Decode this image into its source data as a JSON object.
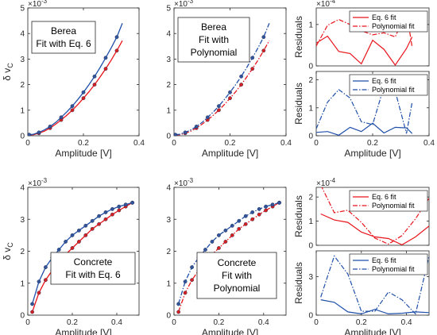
{
  "colors": {
    "red": "#e8141b",
    "blue": "#1f4fa8",
    "marker_red": "#d42020",
    "marker_blue": "#32559a"
  },
  "chart_data": [
    {
      "id": "berea-eq6",
      "type": "scatter",
      "xlabel": "Amplitude [V]",
      "ylabel": "δ v",
      "ylabel_sub": "C",
      "exponent": "×10",
      "exponent_power": "-3",
      "xlim": [
        0,
        0.4
      ],
      "ylim": [
        0,
        5
      ],
      "xticks": [
        "0",
        "0.2",
        "0.4"
      ],
      "yticks": [
        "0",
        "1",
        "2",
        "3",
        "4",
        "5"
      ],
      "xtick_values": [
        0,
        0.2,
        0.4
      ],
      "ytick_values": [
        0,
        1,
        2,
        3,
        4,
        5
      ],
      "annotation": [
        "Berea",
        "Fit with Eq. 6"
      ],
      "series": [
        {
          "color": "red",
          "fit": "solid",
          "x": [
            0.005,
            0.02,
            0.04,
            0.06,
            0.08,
            0.1,
            0.12,
            0.14,
            0.16,
            0.18,
            0.2,
            0.22,
            0.24,
            0.26,
            0.28,
            0.3,
            0.32,
            0.34
          ],
          "y": [
            0.03,
            0.04,
            0.1,
            0.18,
            0.3,
            0.45,
            0.62,
            0.8,
            1.0,
            1.22,
            1.47,
            1.72,
            2.0,
            2.3,
            2.62,
            2.96,
            3.33,
            3.72
          ]
        },
        {
          "color": "blue",
          "fit": "solid",
          "x": [
            0.005,
            0.02,
            0.04,
            0.06,
            0.08,
            0.1,
            0.12,
            0.14,
            0.16,
            0.18,
            0.2,
            0.22,
            0.24,
            0.26,
            0.28,
            0.3,
            0.32,
            0.34
          ],
          "y": [
            0.04,
            0.06,
            0.13,
            0.23,
            0.36,
            0.52,
            0.72,
            0.93,
            1.16,
            1.42,
            1.7,
            2.0,
            2.32,
            2.67,
            3.05,
            3.44,
            3.86,
            4.4
          ]
        }
      ]
    },
    {
      "id": "berea-poly",
      "type": "scatter",
      "xlabel": "Amplitude [V]",
      "ylabel": "",
      "exponent": "×10",
      "exponent_power": "-3",
      "xlim": [
        0,
        0.4
      ],
      "ylim": [
        0,
        5
      ],
      "xticks": [
        "0",
        "0.2",
        "0.4"
      ],
      "yticks": [
        "0",
        "1",
        "2",
        "3",
        "4",
        "5"
      ],
      "xtick_values": [
        0,
        0.2,
        0.4
      ],
      "ytick_values": [
        0,
        1,
        2,
        3,
        4,
        5
      ],
      "annotation": [
        "Berea",
        "Fit with",
        "Polynomial"
      ],
      "series": [
        {
          "color": "red",
          "fit": "dashdot",
          "x": [
            0.005,
            0.02,
            0.04,
            0.06,
            0.08,
            0.1,
            0.12,
            0.14,
            0.16,
            0.18,
            0.2,
            0.22,
            0.24,
            0.26,
            0.28,
            0.3,
            0.32,
            0.34
          ],
          "y": [
            0.03,
            0.04,
            0.1,
            0.18,
            0.3,
            0.45,
            0.62,
            0.8,
            1.0,
            1.22,
            1.47,
            1.72,
            2.0,
            2.3,
            2.62,
            2.96,
            3.33,
            3.72
          ]
        },
        {
          "color": "blue",
          "fit": "dashdot",
          "x": [
            0.005,
            0.02,
            0.04,
            0.06,
            0.08,
            0.1,
            0.12,
            0.14,
            0.16,
            0.18,
            0.2,
            0.22,
            0.24,
            0.26,
            0.28,
            0.3,
            0.32,
            0.34
          ],
          "y": [
            0.04,
            0.06,
            0.13,
            0.23,
            0.36,
            0.52,
            0.72,
            0.93,
            1.16,
            1.42,
            1.7,
            2.0,
            2.32,
            2.67,
            3.05,
            3.44,
            3.86,
            4.4
          ]
        }
      ]
    },
    {
      "id": "berea-res-red",
      "type": "line",
      "xlabel": "",
      "ylabel": "Residuals",
      "exponent": "×10",
      "exponent_power": "-4",
      "xlim": [
        0,
        0.4
      ],
      "ylim": [
        0,
        1.4
      ],
      "xticks": [],
      "yticks": [
        "0",
        "1"
      ],
      "ytick_values": [
        0,
        1
      ],
      "xtick_values": [],
      "legend": {
        "placement": "top-right",
        "entries": [
          "Eq. 6 fit",
          "Polynomial fit"
        ]
      },
      "series": [
        {
          "name": "Eq. 6 fit",
          "color": "red",
          "style": "solid",
          "x": [
            0.0,
            0.04,
            0.08,
            0.12,
            0.16,
            0.2,
            0.24,
            0.28,
            0.32,
            0.34
          ],
          "y": [
            0.55,
            0.72,
            0.35,
            0.3,
            0.05,
            0.62,
            0.4,
            0.02,
            0.42,
            0.7
          ]
        },
        {
          "name": "Polynomial fit",
          "color": "red",
          "style": "dashdot",
          "x": [
            0.0,
            0.04,
            0.08,
            0.12,
            0.16,
            0.2,
            0.24,
            0.28,
            0.32,
            0.34
          ],
          "y": [
            0.48,
            0.98,
            1.12,
            1.0,
            0.85,
            0.75,
            0.8,
            0.7,
            1.32,
            0.45
          ]
        }
      ]
    },
    {
      "id": "berea-res-blue",
      "type": "line",
      "xlabel": "Amplitude [V]",
      "ylabel": "Residuals",
      "exponent": "",
      "exponent_power": "",
      "xlim": [
        0,
        0.4
      ],
      "ylim": [
        0,
        2.3
      ],
      "xticks": [
        "0",
        "0.2",
        "0.4"
      ],
      "xtick_values": [
        0,
        0.2,
        0.4
      ],
      "yticks": [
        "0",
        "1",
        "2"
      ],
      "ytick_values": [
        0,
        1,
        2
      ],
      "legend": {
        "placement": "top-right",
        "entries": [
          "Eq. 6 fit",
          "Polynomial fit"
        ]
      },
      "series": [
        {
          "name": "Eq. 6 fit",
          "color": "blue",
          "style": "solid",
          "x": [
            0.0,
            0.04,
            0.08,
            0.12,
            0.16,
            0.2,
            0.24,
            0.28,
            0.32,
            0.34
          ],
          "y": [
            0.12,
            0.15,
            0.02,
            0.3,
            0.15,
            0.45,
            0.1,
            0.3,
            0.28,
            0.08
          ]
        },
        {
          "name": "Polynomial fit",
          "color": "blue",
          "style": "dashdot",
          "x": [
            0.0,
            0.04,
            0.08,
            0.12,
            0.16,
            0.2,
            0.24,
            0.28,
            0.32,
            0.34
          ],
          "y": [
            0.25,
            1.2,
            1.65,
            1.35,
            0.5,
            0.4,
            1.75,
            1.6,
            0.08,
            1.2
          ]
        }
      ]
    },
    {
      "id": "concrete-eq6",
      "type": "scatter",
      "xlabel": "Amplitude [V]",
      "ylabel": "δ v",
      "ylabel_sub": "C",
      "exponent": "×10",
      "exponent_power": "-3",
      "xlim": [
        0,
        0.5
      ],
      "ylim": [
        0,
        4
      ],
      "xticks": [
        "0",
        "0.2",
        "0.4"
      ],
      "yticks": [
        "0",
        "1",
        "2",
        "3",
        "4"
      ],
      "xtick_values": [
        0,
        0.2,
        0.4
      ],
      "ytick_values": [
        0,
        1,
        2,
        3,
        4
      ],
      "annotation": [
        "Concrete",
        "Fit with Eq. 6"
      ],
      "series": [
        {
          "color": "red",
          "fit": "solid",
          "x": [
            0.02,
            0.05,
            0.08,
            0.11,
            0.14,
            0.17,
            0.2,
            0.23,
            0.26,
            0.29,
            0.32,
            0.35,
            0.38,
            0.41,
            0.44,
            0.47
          ],
          "y": [
            0.1,
            0.7,
            1.1,
            1.4,
            1.65,
            1.9,
            2.1,
            2.3,
            2.5,
            2.7,
            2.85,
            3.0,
            3.15,
            3.28,
            3.4,
            3.52
          ]
        },
        {
          "color": "blue",
          "fit": "solid",
          "x": [
            0.02,
            0.05,
            0.08,
            0.11,
            0.14,
            0.17,
            0.2,
            0.23,
            0.26,
            0.29,
            0.32,
            0.35,
            0.38,
            0.41,
            0.44,
            0.47
          ],
          "y": [
            0.35,
            1.05,
            1.5,
            1.8,
            2.05,
            2.3,
            2.5,
            2.65,
            2.8,
            2.95,
            3.1,
            3.22,
            3.32,
            3.4,
            3.46,
            3.52
          ]
        }
      ]
    },
    {
      "id": "concrete-poly",
      "type": "scatter",
      "xlabel": "Amplitude [V]",
      "ylabel": "",
      "exponent": "×10",
      "exponent_power": "-3",
      "xlim": [
        0,
        0.5
      ],
      "ylim": [
        0,
        4
      ],
      "xticks": [
        "0",
        "0.2",
        "0.4"
      ],
      "yticks": [
        "0",
        "1",
        "2",
        "3",
        "4"
      ],
      "xtick_values": [
        0,
        0.2,
        0.4
      ],
      "ytick_values": [
        0,
        1,
        2,
        3,
        4
      ],
      "annotation": [
        "Concrete",
        "Fit with",
        "Polynomial"
      ],
      "series": [
        {
          "color": "red",
          "fit": "dashdot",
          "x": [
            0.02,
            0.05,
            0.08,
            0.11,
            0.14,
            0.17,
            0.2,
            0.23,
            0.26,
            0.29,
            0.32,
            0.35,
            0.38,
            0.41,
            0.44,
            0.47
          ],
          "y": [
            0.1,
            0.7,
            1.1,
            1.4,
            1.65,
            1.9,
            2.1,
            2.3,
            2.5,
            2.7,
            2.85,
            3.0,
            3.15,
            3.28,
            3.4,
            3.52
          ]
        },
        {
          "color": "blue",
          "fit": "dashdot",
          "x": [
            0.02,
            0.05,
            0.08,
            0.11,
            0.14,
            0.17,
            0.2,
            0.23,
            0.26,
            0.29,
            0.32,
            0.35,
            0.38,
            0.41,
            0.44,
            0.47
          ],
          "y": [
            0.35,
            1.05,
            1.5,
            1.8,
            2.05,
            2.3,
            2.5,
            2.65,
            2.8,
            2.95,
            3.1,
            3.22,
            3.32,
            3.4,
            3.46,
            3.52
          ]
        }
      ]
    },
    {
      "id": "concrete-res-red",
      "type": "line",
      "xlabel": "",
      "ylabel": "Residuals",
      "exponent": "×10",
      "exponent_power": "-4",
      "xlim": [
        0,
        0.5
      ],
      "ylim": [
        0,
        2.4
      ],
      "xticks": [],
      "xtick_values": [],
      "yticks": [
        "0",
        "1",
        "2"
      ],
      "ytick_values": [
        0,
        1,
        2
      ],
      "legend": {
        "placement": "top-right",
        "entries": [
          "Eq. 6 fit",
          "Polynomial fit"
        ]
      },
      "series": [
        {
          "name": "Eq. 6 fit",
          "color": "red",
          "style": "solid",
          "x": [
            0.02,
            0.08,
            0.14,
            0.2,
            0.26,
            0.32,
            0.38,
            0.44,
            0.5
          ],
          "y": [
            1.3,
            1.05,
            0.95,
            0.55,
            0.35,
            0.28,
            0.02,
            0.35,
            0.8
          ]
        },
        {
          "name": "Polynomial fit",
          "color": "red",
          "style": "dashdot",
          "x": [
            0.02,
            0.08,
            0.14,
            0.2,
            0.26,
            0.32,
            0.38,
            0.44,
            0.5
          ],
          "y": [
            2.5,
            1.35,
            1.45,
            0.95,
            0.3,
            0.05,
            0.4,
            1.1,
            1.95
          ]
        }
      ]
    },
    {
      "id": "concrete-res-blue",
      "type": "line",
      "xlabel": "Amplitude [V]",
      "ylabel": "Residuals",
      "exponent": "",
      "exponent_power": "",
      "xlim": [
        0,
        0.5
      ],
      "ylim": [
        0,
        5
      ],
      "xticks": [
        "0",
        "0.2",
        "0.4"
      ],
      "xtick_values": [
        0,
        0.2,
        0.4
      ],
      "yticks": [
        "0",
        "3"
      ],
      "ytick_values": [
        0,
        3
      ],
      "legend": {
        "placement": "top-right",
        "entries": [
          "Eq. 6 fit",
          "Polynomial fit"
        ]
      },
      "series": [
        {
          "name": "Eq. 6 fit",
          "color": "blue",
          "style": "solid",
          "x": [
            0.02,
            0.08,
            0.14,
            0.2,
            0.26,
            0.32,
            0.38,
            0.44,
            0.5
          ],
          "y": [
            1.2,
            1.0,
            0.25,
            0.1,
            0.45,
            0.1,
            0.15,
            0.25,
            0.2
          ]
        },
        {
          "name": "Polynomial fit",
          "color": "blue",
          "style": "dashdot",
          "x": [
            0.02,
            0.08,
            0.14,
            0.2,
            0.26,
            0.32,
            0.38,
            0.44,
            0.5
          ],
          "y": [
            1.4,
            4.6,
            3.2,
            0.3,
            0.3,
            1.8,
            1.2,
            0.1,
            4.6
          ]
        }
      ]
    }
  ]
}
